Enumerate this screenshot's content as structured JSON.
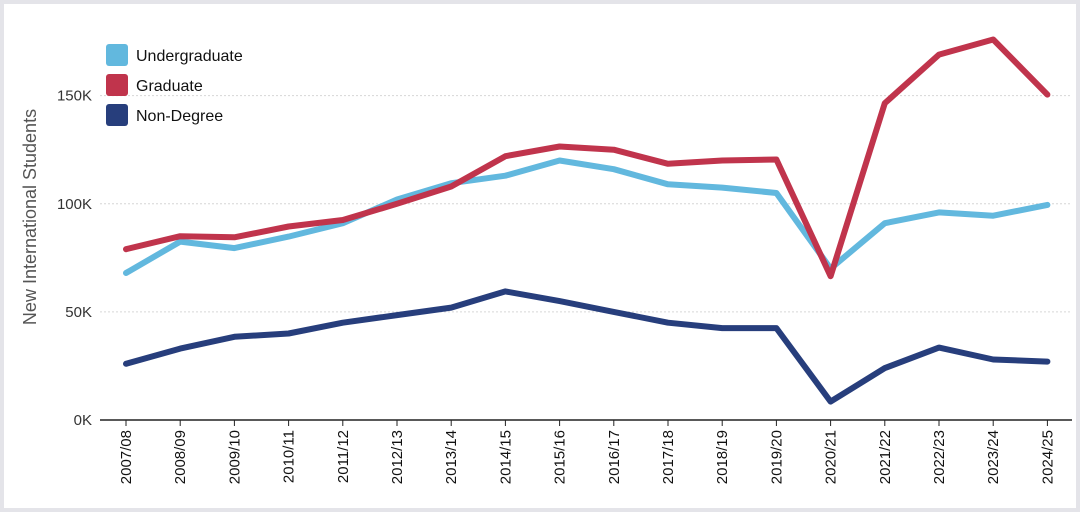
{
  "chart_data": {
    "type": "line",
    "title": "",
    "xlabel": "",
    "ylabel": "New International Students",
    "ylim": [
      0,
      185000
    ],
    "yticks": [
      0,
      50000,
      100000,
      150000
    ],
    "ytick_labels": [
      "0K",
      "50K",
      "100K",
      "150K"
    ],
    "grid": true,
    "legend_position": "top-left",
    "categories": [
      "2007/08",
      "2008/09",
      "2009/10",
      "2010/11",
      "2011/12",
      "2012/13",
      "2013/14",
      "2014/15",
      "2015/16",
      "2016/17",
      "2017/18",
      "2018/19",
      "2019/20",
      "2020/21",
      "2021/22",
      "2022/23",
      "2023/24",
      "2024/25"
    ],
    "series": [
      {
        "name": "Undergraduate",
        "color": "#62b8de",
        "values": [
          68000,
          82500,
          79500,
          84800,
          91000,
          102000,
          109500,
          113000,
          120000,
          116000,
          109000,
          107500,
          105000,
          70000,
          91000,
          96000,
          94500,
          99500
        ]
      },
      {
        "name": "Graduate",
        "color": "#c0344c",
        "values": [
          79000,
          85000,
          84500,
          89500,
          92500,
          100000,
          108000,
          122000,
          126500,
          125000,
          118500,
          120000,
          120500,
          66500,
          146500,
          169000,
          176000,
          150500
        ]
      },
      {
        "name": "Non-Degree",
        "color": "#273e7c",
        "values": [
          26000,
          33000,
          38500,
          40000,
          45000,
          48500,
          52000,
          59500,
          55000,
          50000,
          45000,
          42500,
          42500,
          8500,
          24000,
          33500,
          28000,
          27000
        ]
      }
    ]
  }
}
